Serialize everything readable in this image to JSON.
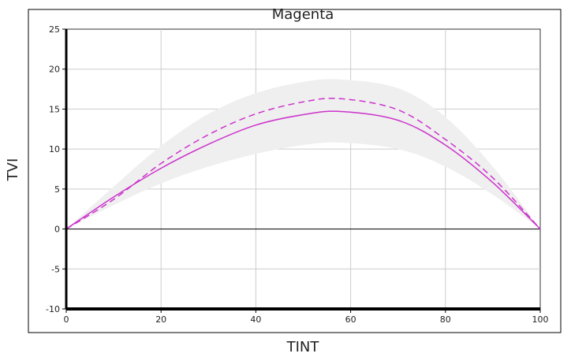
{
  "chart_data": {
    "type": "line",
    "title": "Magenta",
    "xlabel": "TINT",
    "ylabel": "TVI",
    "xlim": [
      0,
      100
    ],
    "ylim": [
      -10,
      25
    ],
    "x_ticks": [
      0,
      20,
      40,
      60,
      80,
      100
    ],
    "y_ticks": [
      -10,
      -5,
      0,
      5,
      10,
      15,
      20,
      25
    ],
    "grid": true,
    "colors": {
      "line": "#cc33cc",
      "band": "#efefef",
      "grid": "#cccccc",
      "zero_line": "#000000"
    },
    "series": [
      {
        "style": "solid",
        "x": [
          0,
          10,
          20,
          30,
          40,
          50,
          58,
          70,
          80,
          90,
          100
        ],
        "y": [
          0,
          4.0,
          7.6,
          10.6,
          13.0,
          14.3,
          14.7,
          13.6,
          10.5,
          5.8,
          0
        ]
      },
      {
        "style": "dashed",
        "x": [
          0,
          10,
          20,
          30,
          40,
          50,
          58,
          70,
          80,
          90,
          100
        ],
        "y": [
          0,
          3.7,
          8.2,
          11.8,
          14.4,
          15.9,
          16.3,
          14.9,
          11.2,
          6.4,
          0
        ]
      }
    ],
    "band": {
      "x": [
        0,
        10,
        20,
        30,
        40,
        50,
        58,
        70,
        80,
        90,
        100
      ],
      "lower": [
        0,
        3.0,
        5.7,
        7.8,
        9.4,
        10.5,
        10.8,
        10.0,
        7.8,
        4.3,
        0
      ],
      "upper": [
        0,
        5.3,
        10.4,
        14.4,
        17.0,
        18.4,
        18.7,
        17.6,
        14.0,
        7.8,
        0
      ]
    }
  }
}
